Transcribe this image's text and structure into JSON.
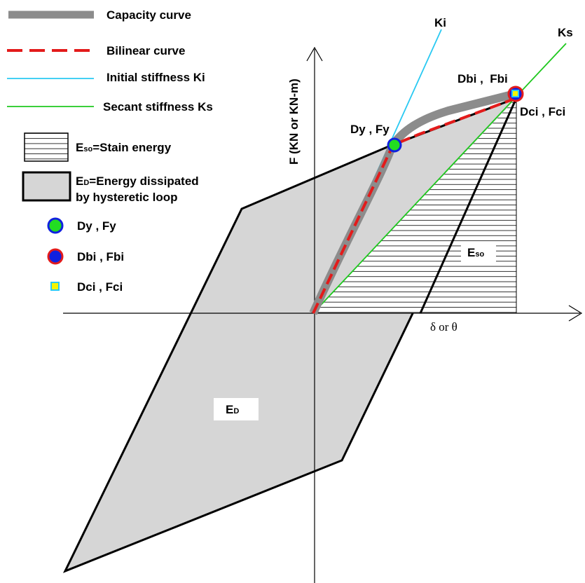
{
  "legend": {
    "capacity_curve": "Capacity curve",
    "bilinear_curve": "Bilinear curve",
    "initial_stiffness": "Initial stiffness Ki",
    "secant_stiffness": "Secant stiffness Ks",
    "strain_energy_main": "E",
    "strain_energy_sub": "so",
    "strain_energy_text": "=Stain energy",
    "dissipated_main": "E",
    "dissipated_sub": "D",
    "dissipated_line1": "=Energy dissipated",
    "dissipated_line2": "by hysteretic loop",
    "yield_point": "Dy , Fy",
    "bilinear_point": "Dbi , Fbi",
    "capacity_point": "Dci , Fci"
  },
  "labels": {
    "ki": "Ki",
    "ks": "Ks",
    "y_axis": "F (KN or KN-m)",
    "x_axis": "δ or θ",
    "point_yield": "Dy , Fy",
    "point_bilinear": "Dbi ,  Fbi",
    "point_capacity": "Dci , Fci",
    "eso_main": "E",
    "eso_sub": "so",
    "ed_main": "E",
    "ed_sub": "D"
  },
  "colors": {
    "capacity": "#8c8c8c",
    "bilinear": "#e31b1b",
    "initial": "#29c9f2",
    "secant": "#1fc81f",
    "loop_fill": "#d6d6d6",
    "yield_marker": "#22dd22",
    "bilinear_marker": "#1020e0",
    "capacity_marker": "#f5f500"
  }
}
